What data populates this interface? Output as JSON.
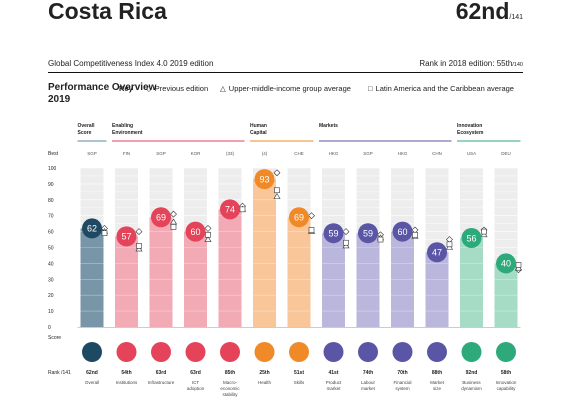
{
  "header": {
    "country": "Costa Rica",
    "rank": "62nd",
    "rank_total": "/141",
    "edition": "Global Competitiveness Index 4.0 2019 edition",
    "prev_rank_label": "Rank in 2018 edition: 55th",
    "prev_rank_total": "/140"
  },
  "perf_title": "Performance Overview 2019",
  "legend": {
    "key": "Key",
    "previous": "Previous edition",
    "peer_income": "Upper-middle-income group average",
    "peer_region": "Latin America and the Caribbean average"
  },
  "row_labels": {
    "best": "Best",
    "score": "Score",
    "rank": "Rank /141"
  },
  "chart_data": {
    "type": "bar",
    "ylim": [
      0,
      100
    ],
    "yticks": [
      0,
      10,
      20,
      30,
      40,
      50,
      60,
      70,
      80,
      90,
      100
    ],
    "groups": [
      {
        "label": "Overall Score",
        "start": 0,
        "end": 0,
        "color": "#5a8aa6"
      },
      {
        "label": "Enabling Environment",
        "start": 1,
        "end": 4,
        "color": "#e2405a"
      },
      {
        "label": "Human Capital",
        "start": 5,
        "end": 6,
        "color": "#f08a28"
      },
      {
        "label": "Markets",
        "start": 7,
        "end": 10,
        "color": "#5a55a5"
      },
      {
        "label": "Innovation Ecosystem",
        "start": 11,
        "end": 12,
        "color": "#2eaa7a"
      }
    ],
    "pillars": [
      {
        "name": "Overall",
        "best": "SGP",
        "score": 62,
        "score_label": "62",
        "rank": "62nd",
        "prev": 62,
        "income_avg": 60,
        "region_avg": 59,
        "bar": "#7896a8",
        "circle": "#1d4963"
      },
      {
        "name": "Institutions",
        "best": "FIN",
        "score": 57,
        "score_label": "57",
        "rank": "54th",
        "prev": 60,
        "income_avg": 49,
        "region_avg": 51,
        "bar": "#f2aab5",
        "circle": "#e4435a"
      },
      {
        "name": "Infrastructure",
        "best": "SGP",
        "score": 69,
        "score_label": "69",
        "rank": "63rd",
        "prev": 71,
        "income_avg": 66,
        "region_avg": 63,
        "bar": "#f2aab5",
        "circle": "#e4435a"
      },
      {
        "name": "ICT adoption",
        "best": "KOR",
        "score": 60,
        "score_label": "60",
        "rank": "63rd",
        "prev": 62,
        "income_avg": 55,
        "region_avg": 58,
        "bar": "#f2aab5",
        "circle": "#e4435a"
      },
      {
        "name": "Macro-economic stability",
        "best": "(33)",
        "score": 74,
        "score_label": "74",
        "rank": "85th",
        "prev": 76,
        "income_avg": 74,
        "region_avg": 74,
        "bar": "#f2aab5",
        "circle": "#e4435a"
      },
      {
        "name": "Health",
        "best": "(4)",
        "score": 93,
        "score_label": "93",
        "rank": "25th",
        "prev": 97,
        "income_avg": 82,
        "region_avg": 86,
        "bar": "#f8c698",
        "circle": "#f08a28"
      },
      {
        "name": "Skills",
        "best": "CHE",
        "score": 69,
        "score_label": "69",
        "rank": "51st",
        "prev": 70,
        "income_avg": 60,
        "region_avg": 61,
        "bar": "#f8c698",
        "circle": "#f08a28"
      },
      {
        "name": "Product market",
        "best": "HKG",
        "score": 59,
        "score_label": "59",
        "rank": "41st",
        "prev": 60,
        "income_avg": 51,
        "region_avg": 53,
        "bar": "#bab6dc",
        "circle": "#5a55a5"
      },
      {
        "name": "Labour market",
        "best": "SGP",
        "score": 59,
        "score_label": "59",
        "rank": "74th",
        "prev": 58,
        "income_avg": 56,
        "region_avg": 55,
        "bar": "#bab6dc",
        "circle": "#5a55a5"
      },
      {
        "name": "Financial system",
        "best": "HKG",
        "score": 60,
        "score_label": "60",
        "rank": "70th",
        "prev": 61,
        "income_avg": 57,
        "region_avg": 58,
        "bar": "#bab6dc",
        "circle": "#5a55a5"
      },
      {
        "name": "Market size",
        "best": "CHN",
        "score": 47,
        "score_label": "47",
        "rank": "88th",
        "prev": 55,
        "income_avg": 50,
        "region_avg": 52,
        "bar": "#bab6dc",
        "circle": "#5a55a5"
      },
      {
        "name": "Business dynamism",
        "best": "USA",
        "score": 56,
        "score_label": "56",
        "rank": "92nd",
        "prev": 61,
        "income_avg": 58,
        "region_avg": 60,
        "bar": "#a6dbc6",
        "circle": "#2eaa7a"
      },
      {
        "name": "Innovation capability",
        "best": "DEU",
        "score": 40,
        "score_label": "40",
        "rank": "58th",
        "prev": 36,
        "income_avg": 37,
        "region_avg": 39,
        "bar": "#a6dbc6",
        "circle": "#2eaa7a"
      }
    ]
  }
}
